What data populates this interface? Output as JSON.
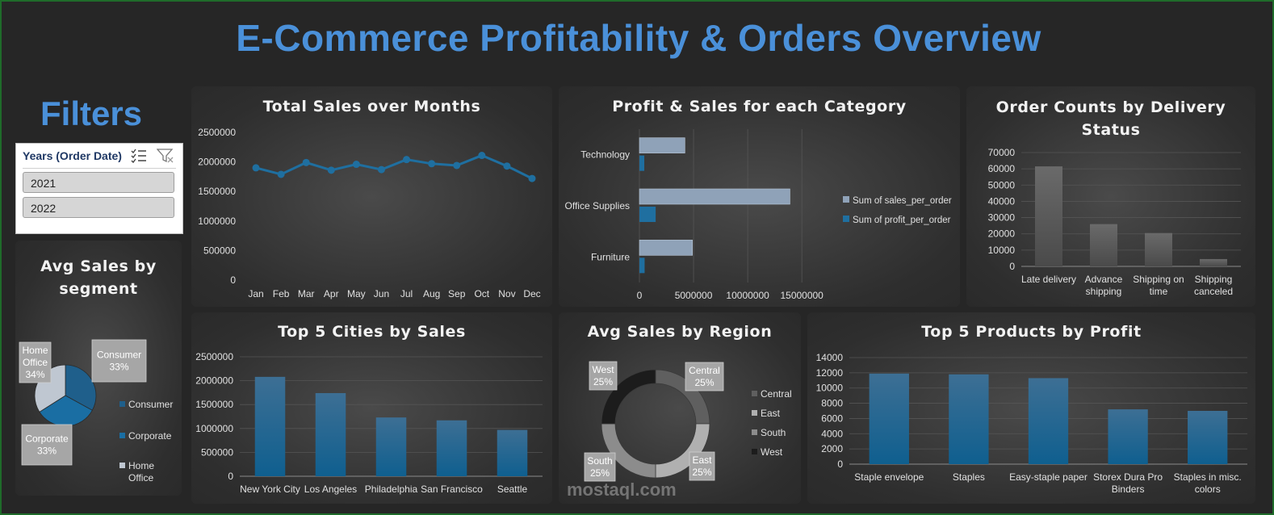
{
  "title": "E-Commerce Profitability & Orders Overview",
  "filters": {
    "heading": "Filters",
    "slicer_title": "Years (Order Date)",
    "items": [
      "2021",
      "2022"
    ],
    "multiselect_icon": "multiselect-icon",
    "clear_filter_icon": "clear-filter-icon"
  },
  "colors": {
    "accent": "#4a90d9",
    "series_blue": "#1f6fa0",
    "series_gray": "#8fa2b8",
    "bar_gray": "#5a5a5a"
  },
  "watermark": "mostaql.com",
  "chart_data": [
    {
      "id": "sales_months",
      "type": "line",
      "title": "Total Sales over Months",
      "categories": [
        "Jan",
        "Feb",
        "Mar",
        "Apr",
        "May",
        "Jun",
        "Jul",
        "Aug",
        "Sep",
        "Oct",
        "Nov",
        "Dec"
      ],
      "values": [
        1900000,
        1790000,
        1990000,
        1860000,
        1960000,
        1870000,
        2040000,
        1970000,
        1940000,
        2110000,
        1930000,
        1720000
      ],
      "yticks": [
        "0",
        "500000",
        "1000000",
        "1500000",
        "2000000",
        "2500000"
      ],
      "ylim": [
        0,
        2500000
      ],
      "grid": false
    },
    {
      "id": "category",
      "type": "bar",
      "orientation": "horizontal",
      "title": "Profit & Sales for each Category",
      "categories": [
        "Technology",
        "Office Supplies",
        "Furniture"
      ],
      "series": [
        {
          "name": "Sum of sales_per_order",
          "values": [
            4200000,
            13900000,
            4900000
          ]
        },
        {
          "name": "Sum of profit_per_order",
          "values": [
            450000,
            1500000,
            480000
          ]
        }
      ],
      "xticks": [
        "0",
        "5000000",
        "10000000",
        "15000000"
      ],
      "xlim": [
        0,
        17000000
      ],
      "legend": "right"
    },
    {
      "id": "delivery",
      "type": "bar",
      "title": "Order Counts by Delivery Status",
      "categories": [
        [
          "Late delivery"
        ],
        [
          "Advance",
          "shipping"
        ],
        [
          "Shipping on",
          "time"
        ],
        [
          "Shipping",
          "canceled"
        ]
      ],
      "values": [
        61500,
        26000,
        20500,
        4500
      ],
      "yticks": [
        "0",
        "10000",
        "20000",
        "30000",
        "40000",
        "50000",
        "60000",
        "70000"
      ],
      "ylim": [
        0,
        70000
      ],
      "grid": true
    },
    {
      "id": "segment",
      "type": "pie",
      "title": "Avg Sales by segment",
      "slices": [
        {
          "name": "Consumer",
          "label": "Consumer",
          "pct": "33%",
          "value": 33
        },
        {
          "name": "Corporate",
          "label": "Corporate",
          "pct": "33%",
          "value": 33
        },
        {
          "name": "Home Office",
          "label": "Home Office",
          "pct": "34%",
          "value": 34
        }
      ],
      "legend": [
        "Consumer",
        "Corporate",
        [
          "Home",
          "Office"
        ]
      ]
    },
    {
      "id": "cities",
      "type": "bar",
      "title": "Top 5 Cities by Sales",
      "categories": [
        "New York City",
        "Los Angeles",
        "Philadelphia",
        "San Francisco",
        "Seattle"
      ],
      "values": [
        2080000,
        1740000,
        1230000,
        1170000,
        970000
      ],
      "yticks": [
        "0",
        "500000",
        "1000000",
        "1500000",
        "2000000",
        "2500000"
      ],
      "ylim": [
        0,
        2500000
      ],
      "grid": true
    },
    {
      "id": "region",
      "type": "pie",
      "variant": "donut",
      "title": "Avg Sales by Region",
      "slices": [
        {
          "name": "Central",
          "pct": "25%",
          "value": 25
        },
        {
          "name": "East",
          "pct": "25%",
          "value": 25
        },
        {
          "name": "South",
          "pct": "25%",
          "value": 25
        },
        {
          "name": "West",
          "pct": "25%",
          "value": 25
        }
      ],
      "legend": [
        "Central",
        "East",
        "South",
        "West"
      ]
    },
    {
      "id": "products",
      "type": "bar",
      "title": "Top 5 Products by Profit",
      "categories": [
        [
          "Staple envelope"
        ],
        [
          "Staples"
        ],
        [
          "Easy-staple paper"
        ],
        [
          "Storex Dura Pro",
          "Binders"
        ],
        [
          "Staples in misc.",
          "colors"
        ]
      ],
      "values": [
        11900,
        11800,
        11300,
        7200,
        7000
      ],
      "yticks": [
        "0",
        "2000",
        "4000",
        "6000",
        "8000",
        "10000",
        "12000",
        "14000"
      ],
      "ylim": [
        0,
        14000
      ],
      "grid": true
    }
  ]
}
